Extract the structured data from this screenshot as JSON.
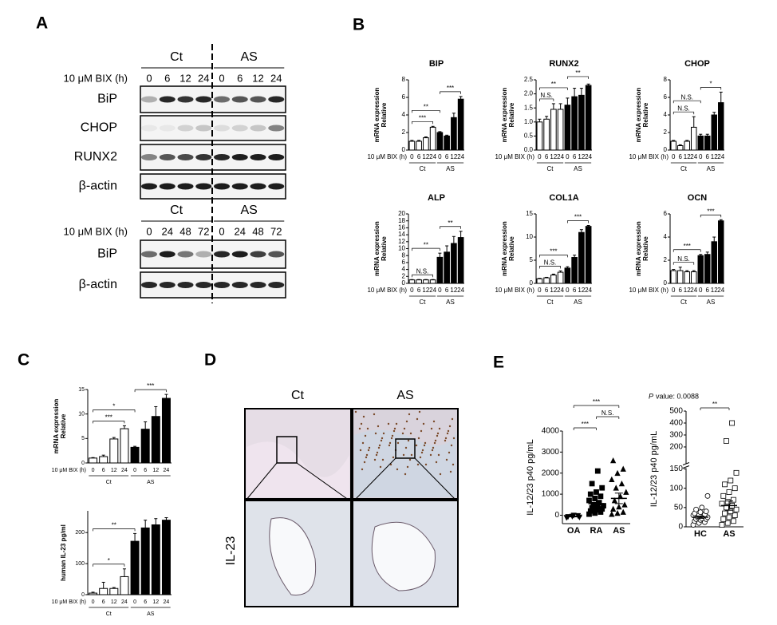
{
  "panel_a": {
    "label": "A",
    "blots": [
      {
        "groups": [
          "Ct",
          "AS"
        ],
        "treatment": "10 μM BIX (h)",
        "times": [
          "0",
          "6",
          "12",
          "24",
          "0",
          "6",
          "12",
          "24"
        ],
        "rows": [
          "BiP",
          "CHOP",
          "RUNX2",
          "β-actin"
        ]
      },
      {
        "groups": [
          "Ct",
          "AS"
        ],
        "treatment": "10 μM BIX (h)",
        "times": [
          "0",
          "24",
          "48",
          "72",
          "0",
          "24",
          "48",
          "72"
        ],
        "rows": [
          "BiP",
          "β-actin"
        ]
      }
    ]
  },
  "panel_b": {
    "label": "B",
    "charts": [
      {
        "type": "bar",
        "title": "BIP",
        "ylabel": [
          "Relative",
          "mRNA expression"
        ],
        "treatment": "10 μM BIX (h)",
        "categories": [
          "0",
          "6",
          "12",
          "24",
          "0",
          "6",
          "12",
          "24"
        ],
        "groups": [
          {
            "name": "Ct",
            "span": [
              0,
              3
            ],
            "color": "#ffffff"
          },
          {
            "name": "AS",
            "span": [
              4,
              7
            ],
            "color": "#000000"
          }
        ],
        "values": [
          1.0,
          1.0,
          1.4,
          2.6,
          2.0,
          1.6,
          3.7,
          5.8
        ],
        "errors": [
          0.1,
          0.1,
          0.1,
          0.1,
          0.1,
          0.1,
          0.5,
          0.3
        ],
        "ylim": [
          0,
          8
        ],
        "yticks": [
          0,
          2,
          4,
          6,
          8
        ],
        "annotations": [
          {
            "text": "***",
            "span": [
              0,
              3
            ]
          },
          {
            "text": "**",
            "span": [
              0,
              4
            ]
          },
          {
            "text": "***",
            "span": [
              4,
              7
            ]
          }
        ]
      },
      {
        "type": "bar",
        "title": "RUNX2",
        "ylabel": [
          "Relative",
          "mRNA expression"
        ],
        "treatment": "10 μM BIX (h)",
        "categories": [
          "0",
          "6",
          "12",
          "24",
          "0",
          "6",
          "12",
          "24"
        ],
        "groups": [
          {
            "name": "Ct",
            "span": [
              0,
              3
            ],
            "color": "#ffffff"
          },
          {
            "name": "AS",
            "span": [
              4,
              7
            ],
            "color": "#000000"
          }
        ],
        "values": [
          1.0,
          1.1,
          1.45,
          1.45,
          1.6,
          1.9,
          1.95,
          2.3
        ],
        "errors": [
          0.1,
          0.1,
          0.2,
          0.2,
          0.25,
          0.3,
          0.25,
          0.05
        ],
        "ylim": [
          0,
          2.5
        ],
        "yticks": [
          {
            "value": 0,
            "label": "0.0"
          },
          {
            "value": 0.5,
            "label": "0.5"
          },
          {
            "value": 1,
            "label": "1.0"
          },
          {
            "value": 1.5,
            "label": "1.5"
          },
          {
            "value": 2,
            "label": "2.0"
          },
          {
            "value": 2.5,
            "label": "2.5"
          }
        ],
        "annotations": [
          {
            "text": "N.S.",
            "span": [
              0,
              2
            ]
          },
          {
            "text": "**",
            "span": [
              0,
              4
            ]
          },
          {
            "text": "**",
            "span": [
              4,
              7
            ]
          }
        ]
      },
      {
        "type": "bar",
        "title": "CHOP",
        "ylabel": [
          "Relative",
          "mRNA expression"
        ],
        "treatment": "10 μM BIX (h)",
        "categories": [
          "0",
          "6",
          "12",
          "24",
          "0",
          "6",
          "12",
          "24"
        ],
        "groups": [
          {
            "name": "Ct",
            "span": [
              0,
              3
            ],
            "color": "#ffffff"
          },
          {
            "name": "AS",
            "span": [
              4,
              7
            ],
            "color": "#000000"
          }
        ],
        "values": [
          1.0,
          0.5,
          1.0,
          2.6,
          1.6,
          1.6,
          4.0,
          5.4
        ],
        "errors": [
          0.1,
          0.1,
          0.1,
          1.2,
          0.2,
          0.2,
          0.3,
          1.2
        ],
        "ylim": [
          0,
          8
        ],
        "yticks": [
          0,
          2,
          4,
          6,
          8
        ],
        "annotations": [
          {
            "text": "N.S.",
            "span": [
              0,
              3
            ]
          },
          {
            "text": "N.S.",
            "span": [
              0,
              4
            ]
          },
          {
            "text": "*",
            "span": [
              4,
              7
            ]
          }
        ]
      },
      {
        "type": "bar",
        "title": "ALP",
        "ylabel": [
          "Relative",
          "mRNA expression"
        ],
        "treatment": "10 μM BIX (h)",
        "categories": [
          "0",
          "6",
          "12",
          "24",
          "0",
          "6",
          "12",
          "24"
        ],
        "groups": [
          {
            "name": "Ct",
            "span": [
              0,
              3
            ],
            "color": "#ffffff"
          },
          {
            "name": "AS",
            "span": [
              4,
              7
            ],
            "color": "#000000"
          }
        ],
        "values": [
          1.0,
          1.0,
          1.0,
          1.0,
          7.5,
          9.0,
          11.5,
          13.2
        ],
        "errors": [
          0.1,
          0.1,
          0.1,
          0.1,
          1.2,
          1.8,
          2.0,
          1.8
        ],
        "ylim": [
          0,
          20
        ],
        "yticks": [
          0,
          2,
          4,
          6,
          8,
          10,
          12,
          14,
          16,
          18,
          20
        ],
        "annotations": [
          {
            "text": "N.S.",
            "span": [
              0,
              3
            ]
          },
          {
            "text": "**",
            "span": [
              0,
              4
            ]
          },
          {
            "text": "**",
            "span": [
              4,
              7
            ]
          }
        ]
      },
      {
        "type": "bar",
        "title": "COL1A",
        "ylabel": [
          "Relative",
          "mRNA expression"
        ],
        "treatment": "10 μM BIX (h)",
        "categories": [
          "0",
          "6",
          "12",
          "24",
          "0",
          "6",
          "12",
          "24"
        ],
        "groups": [
          {
            "name": "Ct",
            "span": [
              0,
              3
            ],
            "color": "#ffffff"
          },
          {
            "name": "AS",
            "span": [
              4,
              7
            ],
            "color": "#000000"
          }
        ],
        "values": [
          1.0,
          1.2,
          1.8,
          2.4,
          3.3,
          5.6,
          11.0,
          12.3
        ],
        "errors": [
          0.1,
          0.1,
          0.2,
          0.3,
          0.3,
          0.5,
          0.6,
          0.2
        ],
        "ylim": [
          0,
          15
        ],
        "yticks": [
          0,
          5,
          10,
          15
        ],
        "annotations": [
          {
            "text": "N.S.",
            "span": [
              0,
              3
            ]
          },
          {
            "text": "***",
            "span": [
              0,
              4
            ]
          },
          {
            "text": "***",
            "span": [
              4,
              7
            ]
          }
        ]
      },
      {
        "type": "bar",
        "title": "OCN",
        "ylabel": [
          "Relative",
          "mRNA expression"
        ],
        "treatment": "10 μM BIX (h)",
        "categories": [
          "0",
          "6",
          "12",
          "24",
          "0",
          "6",
          "12",
          "24"
        ],
        "groups": [
          {
            "name": "Ct",
            "span": [
              0,
              3
            ],
            "color": "#ffffff"
          },
          {
            "name": "AS",
            "span": [
              4,
              7
            ],
            "color": "#000000"
          }
        ],
        "values": [
          1.1,
          1.1,
          1.0,
          1.0,
          2.4,
          2.5,
          3.6,
          5.4
        ],
        "errors": [
          0.1,
          0.3,
          0.1,
          0.1,
          0.1,
          0.2,
          0.4,
          0.1
        ],
        "ylim": [
          0,
          6
        ],
        "yticks": [
          0,
          2,
          4,
          6
        ],
        "annotations": [
          {
            "text": "N.S.",
            "span": [
              0,
              3
            ]
          },
          {
            "text": "***",
            "span": [
              0,
              4
            ]
          },
          {
            "text": "***",
            "span": [
              4,
              7
            ]
          }
        ]
      }
    ]
  },
  "panel_c": {
    "label": "C",
    "charts": [
      {
        "type": "bar",
        "ylabel": [
          "Relative",
          "mRNA expression"
        ],
        "treatment": "10 μM BIX (h)",
        "categories": [
          "0",
          "6",
          "12",
          "24",
          "0",
          "6",
          "12",
          "24"
        ],
        "groups": [
          {
            "name": "Ct",
            "span": [
              0,
              3
            ],
            "color": "#ffffff"
          },
          {
            "name": "AS",
            "span": [
              4,
              7
            ],
            "color": "#000000"
          }
        ],
        "values": [
          1.0,
          1.3,
          4.9,
          7.0,
          3.2,
          6.9,
          9.5,
          13.2
        ],
        "errors": [
          0.1,
          0.3,
          0.3,
          0.6,
          0.2,
          1.5,
          2.0,
          0.8
        ],
        "ylim": [
          0,
          15
        ],
        "yticks": [
          0,
          5,
          10,
          15
        ],
        "annotations": [
          {
            "text": "***",
            "span": [
              0,
              3
            ]
          },
          {
            "text": "*",
            "span": [
              0,
              4
            ]
          },
          {
            "text": "***",
            "span": [
              4,
              7
            ]
          }
        ]
      },
      {
        "type": "bar",
        "ylabel": [
          "human IL-23 pg/ml"
        ],
        "treatment": "10 μM BIX (h)",
        "categories": [
          "0",
          "6",
          "12",
          "24",
          "0",
          "6",
          "12",
          "24"
        ],
        "groups": [
          {
            "name": "Ct",
            "span": [
              0,
              3
            ],
            "color": "#ffffff"
          },
          {
            "name": "AS",
            "span": [
              4,
              7
            ],
            "color": "#000000"
          }
        ],
        "values": [
          5,
          20,
          20,
          58,
          172,
          215,
          225,
          240
        ],
        "errors": [
          3,
          20,
          3,
          25,
          25,
          25,
          20,
          8
        ],
        "ylim": [
          0,
          270
        ],
        "yticks": [
          0,
          100,
          200
        ],
        "annotations": [
          {
            "text": "*",
            "span": [
              0,
              3
            ]
          },
          {
            "text": "**",
            "span": [
              0,
              4
            ]
          }
        ]
      }
    ]
  },
  "panel_d": {
    "label": "D",
    "columns": [
      "Ct",
      "AS"
    ],
    "row_label": "IL-23"
  },
  "panel_e": {
    "label": "E",
    "charts": [
      {
        "type": "scatter",
        "ylabel": [
          "IL-12/23 p40 pg/mL"
        ],
        "categories": [
          "OA",
          "RA",
          "AS"
        ],
        "groups": [
          {
            "values": [
              -120,
              -60,
              -30,
              -80,
              -10,
              -100
            ],
            "mean": -60,
            "sem": 20,
            "marker": "triangle-down",
            "fill": "#000000"
          },
          {
            "values": [
              50,
              100,
              150,
              200,
              250,
              300,
              350,
              400,
              450,
              500,
              600,
              700,
              800,
              900,
              1000,
              1100,
              1300,
              1500,
              2100
            ],
            "mean": 550,
            "sem": 130,
            "marker": "square",
            "fill": "#000000"
          },
          {
            "values": [
              50,
              100,
              150,
              300,
              400,
              500,
              700,
              900,
              1100,
              1300,
              1500,
              1700,
              2000,
              2200,
              2600
            ],
            "mean": 800,
            "sem": 250,
            "marker": "triangle",
            "fill": "#000000"
          }
        ],
        "ylim": [
          -400,
          4000
        ],
        "yticks": [
          0,
          1000,
          2000,
          3000,
          4000
        ],
        "annotations": [
          {
            "text": "***",
            "span": [
              0,
              1
            ]
          },
          {
            "text": "N.S.",
            "span": [
              1,
              2
            ]
          },
          {
            "text": "***",
            "span": [
              0,
              2
            ]
          }
        ]
      },
      {
        "type": "scatter",
        "p_value": {
          "italic": "P",
          "rest": "value: 0.0088"
        },
        "ylabel": [
          "IL-12/23 p40 pg/mL"
        ],
        "categories": [
          "HC",
          "AS"
        ],
        "groups": [
          {
            "values": [
              5,
              10,
              12,
              15,
              18,
              20,
              20,
              22,
              25,
              25,
              28,
              30,
              30,
              32,
              35,
              38,
              40,
              45,
              50,
              80
            ],
            "mean": 25,
            "sem": 3,
            "marker": "circle",
            "fill": "none"
          },
          {
            "values": [
              5,
              10,
              15,
              20,
              25,
              30,
              35,
              40,
              45,
              50,
              55,
              60,
              65,
              70,
              80,
              90,
              100,
              110,
              120,
              140,
              250,
              400
            ],
            "mean": 55,
            "sem": 12,
            "marker": "square",
            "fill": "none"
          }
        ],
        "ylim_lower": [
          0,
          150
        ],
        "ylim_upper": [
          200,
          500
        ],
        "yticks": [
          0,
          50,
          100,
          150,
          200,
          300,
          400,
          500
        ],
        "annotations": [
          {
            "text": "**",
            "span": [
              0,
              1
            ]
          }
        ]
      }
    ]
  }
}
